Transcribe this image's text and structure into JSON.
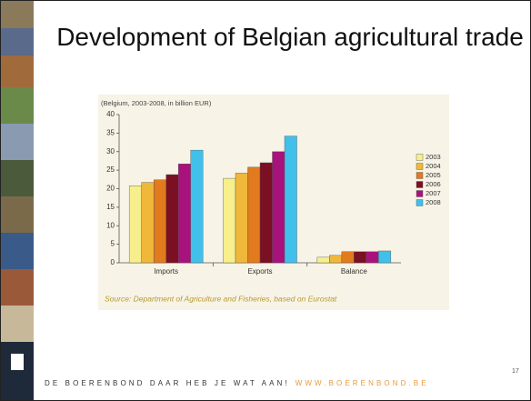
{
  "slide_title": "Development of Belgian agricultural trade",
  "footer": {
    "slogan": "DE BOERENBOND DAAR HEB JE WAT AAN!",
    "url": "WWW.BOERENBOND.BE"
  },
  "page_number": "17",
  "chart_data": {
    "type": "bar",
    "title": "(Belgium, 2003-2008, in billion EUR)",
    "source": "Source: Department of Agriculture and Fisheries, based on Eurostat",
    "categories": [
      "Imports",
      "Exports",
      "Balance"
    ],
    "series": [
      {
        "name": "2003",
        "color": "#f6ef8c",
        "values": [
          20.8,
          22.8,
          1.5
        ]
      },
      {
        "name": "2004",
        "color": "#f0b83a",
        "values": [
          21.7,
          24.2,
          2.0
        ]
      },
      {
        "name": "2005",
        "color": "#e27a1e",
        "values": [
          22.4,
          25.8,
          3.0
        ]
      },
      {
        "name": "2006",
        "color": "#7a1022",
        "values": [
          23.8,
          27.0,
          3.0
        ]
      },
      {
        "name": "2007",
        "color": "#a8127c",
        "values": [
          26.7,
          30.0,
          3.0
        ]
      },
      {
        "name": "2008",
        "color": "#40c0ea",
        "values": [
          30.4,
          34.2,
          3.2
        ]
      }
    ],
    "ylim": [
      0,
      40
    ],
    "yticks": [
      0,
      5,
      10,
      15,
      20,
      25,
      30,
      35,
      40
    ],
    "grid": false,
    "legend": "right"
  }
}
